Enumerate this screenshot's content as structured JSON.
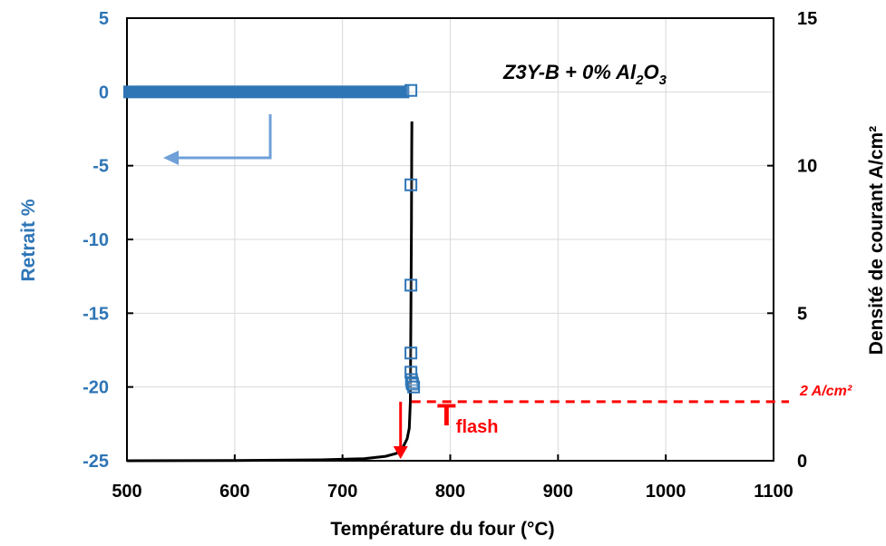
{
  "chart_data": {
    "type": "scatter",
    "annotation_title": {
      "pre": "Z3Y-B + 0% Al",
      "sub1": "2",
      "mid": "O",
      "sub2": "3"
    },
    "xlabel": "Température du four  (°C)",
    "ylabel_left": "Retrait %",
    "ylabel_right": "Densité de courant A/cm²",
    "xlim": [
      500,
      1100
    ],
    "ylim_left": [
      -25,
      5
    ],
    "ylim_right": [
      0,
      15
    ],
    "x_ticks": [
      "500",
      "600",
      "700",
      "800",
      "900",
      "1000",
      "1100"
    ],
    "y_left_ticks": [
      "5",
      "0",
      "-5",
      "-10",
      "-15",
      "-20",
      "-25"
    ],
    "y_right_ticks": [
      "15",
      "10",
      "5",
      "0"
    ],
    "grid": true,
    "colors": {
      "shrinkage": "#2e75b6",
      "current": "#000000",
      "flash": "#ff0000",
      "arrow_left": "#6fa0d8",
      "grid": "#d9d9d9"
    },
    "series": [
      {
        "axis": "left",
        "marker": "open-square",
        "x": [
          763.5,
          763.5,
          763.5,
          763.5,
          763.5,
          764,
          764.5,
          765,
          766
        ],
        "y": [
          0.1,
          -6.3,
          -13.1,
          -17.7,
          -19,
          -19.5,
          -19.7,
          -19.8,
          -20
        ]
      },
      {
        "axis": "left",
        "marker": "dense-filled-band",
        "x_range": [
          500,
          762
        ],
        "y": 0
      },
      {
        "axis": "right",
        "marker": "line",
        "x": [
          500,
          600,
          680,
          720,
          740,
          750,
          756,
          760,
          762,
          763,
          763.5,
          764,
          764.2,
          764.4
        ],
        "y": [
          0,
          0.01,
          0.03,
          0.07,
          0.15,
          0.25,
          0.45,
          0.75,
          1.1,
          2,
          5,
          8,
          10.5,
          11.5
        ]
      }
    ],
    "annotations": {
      "tflash_main": "T",
      "tflash_sub": "flash",
      "threshold_label": "2 A/cm²",
      "threshold_value": 2,
      "flash_temperature": 764
    }
  }
}
